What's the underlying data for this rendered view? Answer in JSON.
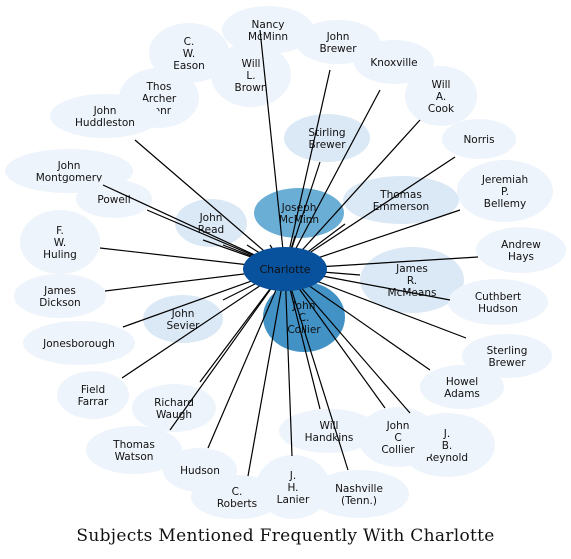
{
  "title": "Subjects Mentioned Frequently With Charlotte",
  "center": {
    "label": "Charlotte",
    "color": "#08519c"
  },
  "colors": {
    "pale": "#eef4fb",
    "light": "#dbe8f5",
    "mid": "#6aaed6",
    "strong": "#4292c6",
    "edge": "#000000"
  },
  "nodes": [
    {
      "id": "nancy-mcminn",
      "lines": [
        "Nancy",
        "McMinn"
      ],
      "shade": "pale"
    },
    {
      "id": "john-brewer",
      "lines": [
        "John",
        "Brewer"
      ],
      "shade": "pale"
    },
    {
      "id": "c-w-eason",
      "lines": [
        "C.",
        "W.",
        "Eason"
      ],
      "shade": "pale"
    },
    {
      "id": "will-l-brown",
      "lines": [
        "Will",
        "L.",
        "Brown"
      ],
      "shade": "pale"
    },
    {
      "id": "knoxville",
      "lines": [
        "Knoxville"
      ],
      "shade": "pale"
    },
    {
      "id": "thos-archer-senr",
      "lines": [
        "Thos",
        "Archer",
        "Senr"
      ],
      "shade": "pale"
    },
    {
      "id": "will-a-cook",
      "lines": [
        "Will",
        "A.",
        "Cook"
      ],
      "shade": "pale"
    },
    {
      "id": "john-huddleston",
      "lines": [
        "John",
        "Huddleston"
      ],
      "shade": "pale"
    },
    {
      "id": "stirling-brewer",
      "lines": [
        "Stirling",
        "Brewer"
      ],
      "shade": "light"
    },
    {
      "id": "norris",
      "lines": [
        "Norris"
      ],
      "shade": "pale"
    },
    {
      "id": "john-montgomery",
      "lines": [
        "John",
        "Montgomery"
      ],
      "shade": "pale"
    },
    {
      "id": "jeremiah-p-bellemy",
      "lines": [
        "Jeremiah",
        "P.",
        "Bellemy"
      ],
      "shade": "pale"
    },
    {
      "id": "powell",
      "lines": [
        "Powell"
      ],
      "shade": "pale"
    },
    {
      "id": "joseph-mcminn",
      "lines": [
        "Joseph",
        "McMinn"
      ],
      "shade": "mid"
    },
    {
      "id": "thomas-emmerson",
      "lines": [
        "Thomas",
        "Emmerson"
      ],
      "shade": "light"
    },
    {
      "id": "john-read",
      "lines": [
        "John",
        "Read"
      ],
      "shade": "light"
    },
    {
      "id": "f-w-huling",
      "lines": [
        "F.",
        "W.",
        "Huling"
      ],
      "shade": "pale"
    },
    {
      "id": "andrew-hays",
      "lines": [
        "Andrew",
        "Hays"
      ],
      "shade": "pale"
    },
    {
      "id": "james-r-mcmeans",
      "lines": [
        "James",
        "R.",
        "McMeans"
      ],
      "shade": "light"
    },
    {
      "id": "james-dickson",
      "lines": [
        "James",
        "Dickson"
      ],
      "shade": "pale"
    },
    {
      "id": "cuthbert-hudson",
      "lines": [
        "Cuthbert",
        "Hudson"
      ],
      "shade": "pale"
    },
    {
      "id": "john-c-collier-main",
      "lines": [
        "John",
        "C.",
        "Collier"
      ],
      "shade": "strong"
    },
    {
      "id": "john-sevier",
      "lines": [
        "John",
        "Sevier"
      ],
      "shade": "light"
    },
    {
      "id": "jonesborough",
      "lines": [
        "Jonesborough"
      ],
      "shade": "pale"
    },
    {
      "id": "sterling-brewer",
      "lines": [
        "Sterling",
        "Brewer"
      ],
      "shade": "pale"
    },
    {
      "id": "field-farrar",
      "lines": [
        "Field",
        "Farrar"
      ],
      "shade": "pale"
    },
    {
      "id": "howel-adams",
      "lines": [
        "Howel",
        "Adams"
      ],
      "shade": "pale"
    },
    {
      "id": "richard-waugh",
      "lines": [
        "Richard",
        "Waugh"
      ],
      "shade": "pale"
    },
    {
      "id": "will-handkins",
      "lines": [
        "Will",
        "Handkins"
      ],
      "shade": "pale"
    },
    {
      "id": "j-b-reynold",
      "lines": [
        "J.",
        "B.",
        "Reynold"
      ],
      "shade": "pale"
    },
    {
      "id": "john-c-collier-small",
      "lines": [
        "John",
        "C",
        "Collier"
      ],
      "shade": "pale"
    },
    {
      "id": "thomas-watson",
      "lines": [
        "Thomas",
        "Watson"
      ],
      "shade": "pale"
    },
    {
      "id": "hudson",
      "lines": [
        "Hudson"
      ],
      "shade": "pale"
    },
    {
      "id": "c-roberts",
      "lines": [
        "C.",
        "Roberts"
      ],
      "shade": "pale"
    },
    {
      "id": "j-h-lanier",
      "lines": [
        "J.",
        "H.",
        "Lanier"
      ],
      "shade": "pale"
    },
    {
      "id": "nashville-tenn",
      "lines": [
        "Nashville",
        "(Tenn.)"
      ],
      "shade": "pale"
    }
  ]
}
